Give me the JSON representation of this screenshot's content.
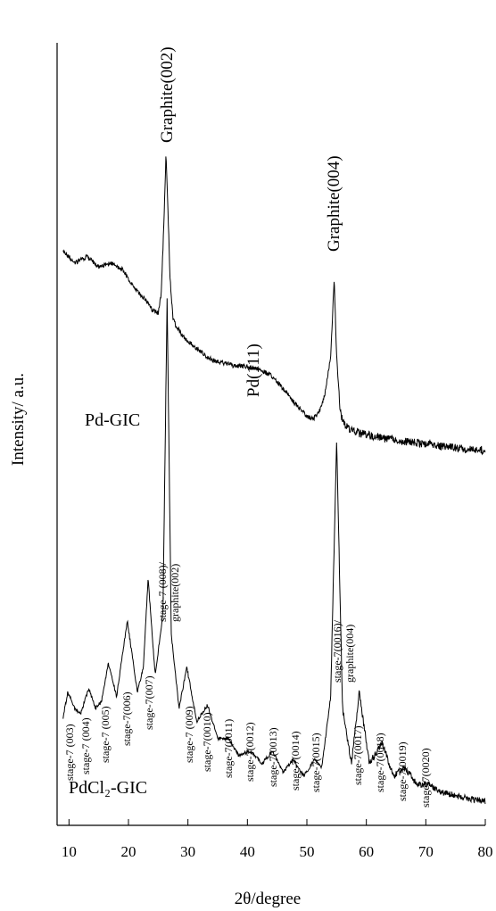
{
  "chart_data": {
    "type": "line",
    "xlabel": "2θ/degree",
    "ylabel": "Intensity/ a.u.",
    "xlim": [
      8,
      80
    ],
    "x_ticks": [
      10,
      20,
      30,
      40,
      50,
      60,
      70,
      80
    ],
    "grid": false,
    "series": [
      {
        "name": "Pd-GIC",
        "x": [
          9,
          11,
          13,
          15,
          17,
          19,
          20,
          21,
          22,
          23,
          24,
          25,
          25.5,
          26,
          26.3,
          26.6,
          27,
          27.5,
          28,
          29,
          30,
          32,
          34,
          36,
          38,
          40,
          42,
          44,
          46,
          48,
          50,
          51,
          52,
          53,
          54,
          54.6,
          55,
          55.5,
          56,
          57,
          58,
          60,
          63,
          66,
          70,
          75,
          80
        ],
        "y": [
          64,
          60,
          62,
          59,
          60,
          58,
          55,
          52,
          50,
          48,
          45,
          44,
          50,
          75,
          95,
          80,
          55,
          42,
          40,
          37,
          35,
          32,
          29,
          28,
          27,
          27,
          26,
          24,
          20,
          15,
          11,
          10,
          12,
          18,
          30,
          55,
          30,
          15,
          9,
          7,
          6,
          5,
          4,
          3,
          2,
          1,
          0
        ]
      },
      {
        "name": "PdCl₂-GIC",
        "x": [
          9,
          9.8,
          11,
          12,
          13.3,
          14.5,
          15.5,
          16.6,
          18,
          19.8,
          21.5,
          22.5,
          23.3,
          24.5,
          25.8,
          26.5,
          27.2,
          28.5,
          29.8,
          31.5,
          33.3,
          35,
          36.8,
          38.5,
          40.5,
          42.5,
          44.2,
          46,
          47.7,
          49.5,
          51.3,
          52.5,
          54,
          55,
          56,
          57.5,
          58.8,
          60.5,
          62.7,
          64.5,
          66.5,
          68.5,
          70.5,
          73,
          76,
          80
        ],
        "y": [
          20,
          26,
          22,
          21,
          27,
          22,
          24,
          33,
          25,
          43,
          26,
          32,
          53,
          30,
          45,
          120,
          40,
          22,
          32,
          19,
          23,
          15,
          15,
          11,
          12,
          9,
          12,
          7,
          10,
          6,
          10,
          8,
          25,
          86,
          22,
          9,
          26,
          9,
          14,
          6,
          8,
          4,
          4,
          2,
          1,
          0
        ]
      }
    ],
    "annotations": {
      "sample_labels": [
        "Pd-GIC",
        "PdCl₂-GIC"
      ],
      "pd_gic_peaks": [
        "Graphite(002)",
        "Pd(111)",
        "Graphite(004)"
      ],
      "pdcl2_peaks": [
        "stage-7 (003)",
        "stage-7 (004)",
        "stage-7 (005)",
        "stage-7(006)",
        "stage-7(007)",
        "stage-7 (008)/",
        "graphite(002)",
        "stage-7 (009)",
        "stage-7(0010)",
        "stage-7(0011)",
        "stage-7(0012)",
        "stage-7(0013)",
        "stage-7(0014)",
        "stage-7(0015)",
        "stage-7(0016)/",
        "graphite(004)",
        "stage-7(0017)",
        "stage-7(0018)",
        "stage-7(0019)",
        "stage-7(0020)"
      ]
    }
  }
}
